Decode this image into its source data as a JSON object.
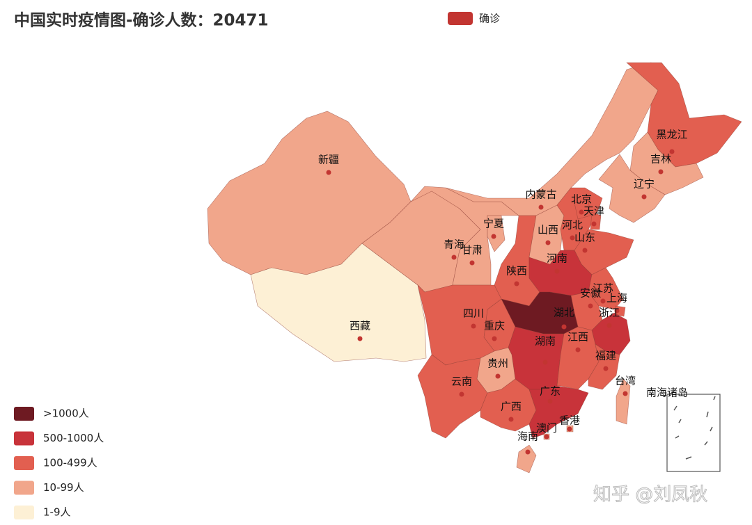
{
  "chart_data": {
    "type": "map",
    "title": "中国实时疫情图-确诊人数：20471",
    "series": [
      {
        "name": "确诊",
        "color": "#c23531"
      }
    ],
    "pieces": [
      {
        "label": ">1000人",
        "color": "#6e1a22"
      },
      {
        "label": "500-1000人",
        "color": "#c8333a"
      },
      {
        "label": "100-499人",
        "color": "#e25f50"
      },
      {
        "label": "10-99人",
        "color": "#f1a68b"
      },
      {
        "label": "1-9人",
        "color": "#fdf0d5"
      }
    ],
    "regions": [
      {
        "name": "新疆",
        "level": 3
      },
      {
        "name": "西藏",
        "level": 4
      },
      {
        "name": "青海",
        "level": 3
      },
      {
        "name": "甘肃",
        "level": 3
      },
      {
        "name": "内蒙古",
        "level": 3
      },
      {
        "name": "黑龙江",
        "level": 2
      },
      {
        "name": "吉林",
        "level": 3
      },
      {
        "name": "辽宁",
        "level": 3
      },
      {
        "name": "宁夏",
        "level": 3
      },
      {
        "name": "陕西",
        "level": 2
      },
      {
        "name": "山西",
        "level": 3
      },
      {
        "name": "河北",
        "level": 2
      },
      {
        "name": "北京",
        "level": 2
      },
      {
        "name": "天津",
        "level": 2
      },
      {
        "name": "山东",
        "level": 2
      },
      {
        "name": "河南",
        "level": 1
      },
      {
        "name": "江苏",
        "level": 2
      },
      {
        "name": "安徽",
        "level": 2
      },
      {
        "name": "上海",
        "level": 2
      },
      {
        "name": "浙江",
        "level": 1
      },
      {
        "name": "湖北",
        "level": 0
      },
      {
        "name": "重庆",
        "level": 2
      },
      {
        "name": "四川",
        "level": 2
      },
      {
        "name": "湖南",
        "level": 1
      },
      {
        "name": "江西",
        "level": 2
      },
      {
        "name": "福建",
        "level": 2
      },
      {
        "name": "台湾",
        "level": 3
      },
      {
        "name": "贵州",
        "level": 3
      },
      {
        "name": "云南",
        "level": 2
      },
      {
        "name": "广西",
        "level": 2
      },
      {
        "name": "广东",
        "level": 1
      },
      {
        "name": "香港",
        "level": 3
      },
      {
        "name": "澳门",
        "level": 3
      },
      {
        "name": "海南",
        "level": 3
      }
    ],
    "inset_label": "南海诸岛",
    "watermark": "知乎 @刘凤秋"
  }
}
